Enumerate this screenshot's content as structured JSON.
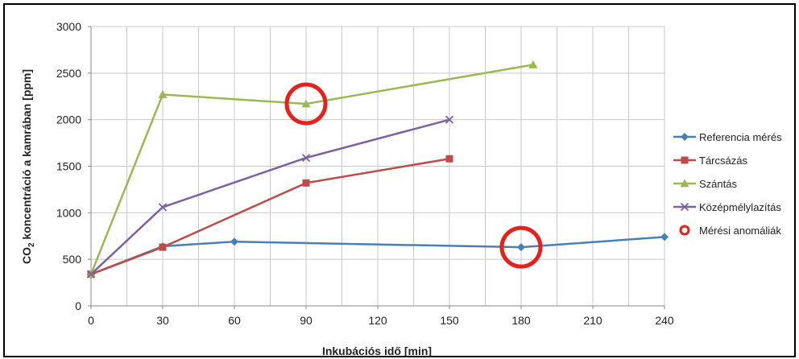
{
  "chart_data": {
    "type": "line",
    "xlabel": "Inkubációs idő [min]",
    "ylabel_prefix": "CO",
    "ylabel_sub": "2",
    "ylabel_rest": " koncentráció a kamrában [ppm]",
    "xlim": [
      0,
      240
    ],
    "ylim": [
      0,
      3000
    ],
    "x_ticks": [
      0,
      30,
      60,
      90,
      120,
      150,
      180,
      210,
      240
    ],
    "y_ticks": [
      0,
      500,
      1000,
      1500,
      2000,
      2500,
      3000
    ],
    "grid": true,
    "legend_position": "right",
    "series": [
      {
        "name": "Referencia mérés",
        "color": "#4a7ebb",
        "marker": "diamond",
        "x": [
          0,
          30,
          60,
          180,
          240
        ],
        "y": [
          340,
          640,
          690,
          630,
          740
        ]
      },
      {
        "name": "Tárcsázás",
        "color": "#be4b48",
        "marker": "square",
        "x": [
          0,
          30,
          90,
          150
        ],
        "y": [
          340,
          630,
          1320,
          1580
        ]
      },
      {
        "name": "Szántás",
        "color": "#98b954",
        "marker": "triangle",
        "x": [
          0,
          30,
          90,
          185
        ],
        "y": [
          340,
          2270,
          2170,
          2590
        ]
      },
      {
        "name": "Középmélylazítás",
        "color": "#7d60a0",
        "marker": "x",
        "x": [
          0,
          30,
          90,
          150
        ],
        "y": [
          340,
          1060,
          1590,
          2000
        ]
      }
    ],
    "annotations": {
      "name": "Mérési anomáliák",
      "color": "#e8201c",
      "points": [
        {
          "x": 90,
          "y": 2170
        },
        {
          "x": 180,
          "y": 630
        }
      ]
    }
  }
}
